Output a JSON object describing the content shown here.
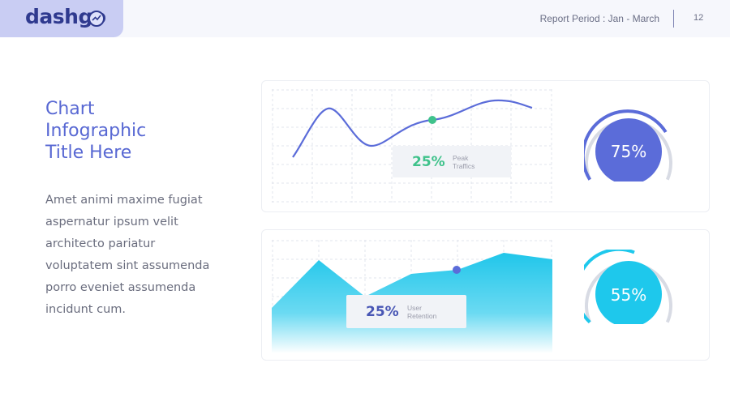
{
  "header": {
    "logo_text": "dashgo",
    "report_period": "Report Period : Jan - March",
    "page_number": "12"
  },
  "slide": {
    "title": "Chart\nInfographic\nTitle Here",
    "body": "Amet animi maxime fugiat aspernatur ipsum velit architecto pariatur voluptatem sint assumenda porro eveniet assumenda incidunt cum."
  },
  "cards": [
    {
      "stat_value": "25%",
      "stat_label": "Peak\nTraffics",
      "ring_value": "75%",
      "ring_fraction": 0.75,
      "accent_color": "#5b6cd9",
      "stat_color": "#3fc28b"
    },
    {
      "stat_value": "25%",
      "stat_label": "User\nRetention",
      "ring_value": "55%",
      "ring_fraction": 0.55,
      "accent_color": "#1ec8ec",
      "stat_color": "#4957b5"
    }
  ],
  "icons": {
    "logo": "gauge-icon"
  }
}
